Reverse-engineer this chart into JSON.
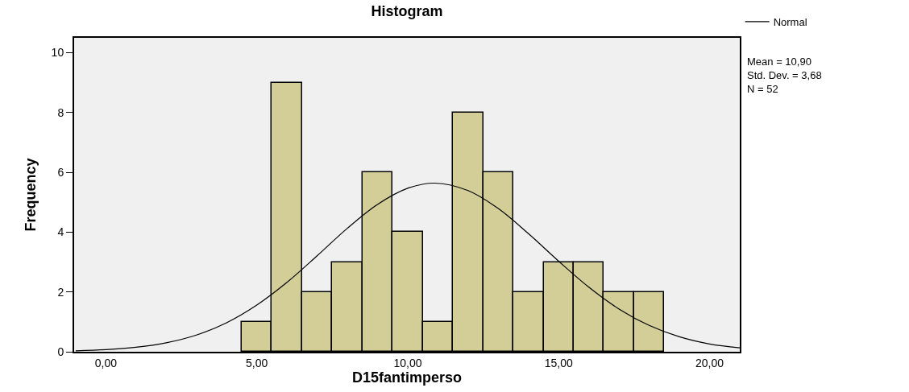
{
  "chart_data": {
    "type": "histogram",
    "title": "Histogram",
    "xlabel": "D15fantimperso",
    "ylabel": "Frequency",
    "bins": [
      4.5,
      5.5,
      6.5,
      7.5,
      8.5,
      9.5,
      10.5,
      11.5,
      12.5,
      13.5,
      14.5,
      15.5,
      16.5,
      17.5,
      18.5
    ],
    "values": [
      1,
      9,
      2,
      3,
      6,
      4,
      1,
      8,
      6,
      2,
      3,
      3,
      2,
      2
    ],
    "color": "#d3ce97",
    "series": [
      {
        "name": "Normal",
        "type": "line",
        "color": "#000000",
        "x": [
          -1,
          0,
          1,
          2,
          3,
          4,
          5,
          6,
          7,
          8,
          9,
          10,
          10.9,
          12,
          13,
          14,
          15,
          16,
          17,
          18,
          19,
          20,
          21
        ],
        "values": [
          0.03,
          0.07,
          0.15,
          0.3,
          0.56,
          0.97,
          1.56,
          2.32,
          3.21,
          4.13,
          4.93,
          5.47,
          5.64,
          5.39,
          4.79,
          3.95,
          3.03,
          2.16,
          1.43,
          0.88,
          0.5,
          0.26,
          0.13
        ]
      }
    ],
    "xlim": [
      -1.05,
      21
    ],
    "ylim": [
      0,
      10.5
    ],
    "xticks": [
      {
        "value": 0,
        "label": "0,00"
      },
      {
        "value": 5,
        "label": "5,00"
      },
      {
        "value": 10,
        "label": "10,00"
      },
      {
        "value": 15,
        "label": "15,00"
      },
      {
        "value": 20,
        "label": "20,00"
      }
    ],
    "yticks": [
      0,
      2,
      4,
      6,
      8,
      10
    ],
    "annotations": [
      "Mean = 10,90\nStd. Dev. = 3,68\nN = 52"
    ],
    "legend": "top right"
  }
}
